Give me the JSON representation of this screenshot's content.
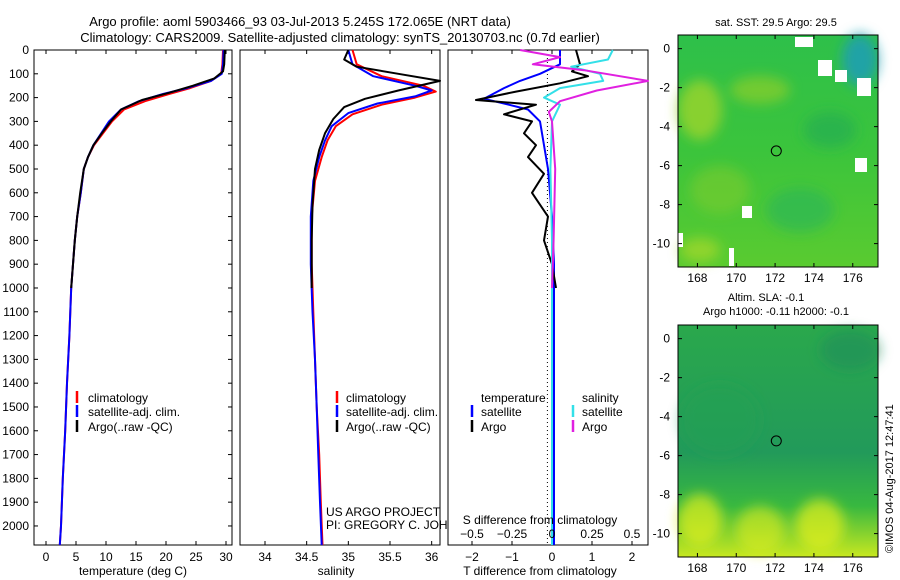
{
  "title_line1": "Argo profile: aoml 5903466_93 03-Jul-2013 5.245S 172.065E (NRT data)",
  "title_line2": "Climatology: CARS2009. Satellite-adjusted climatology: synTS_20130703.nc (0.7d earlier)",
  "colors": {
    "climatology": "#ff0000",
    "satellite": "#0000ff",
    "argo": "#000000",
    "sal_satellite": "#33e0e8",
    "sal_argo": "#e020e0"
  },
  "chart_data": [
    {
      "type": "line",
      "id": "temperature",
      "xlabel": "temperature (deg C)",
      "ylabel": "",
      "xlim": [
        -2,
        31
      ],
      "ylim": [
        2080,
        0
      ],
      "xticks": [
        0,
        5,
        10,
        15,
        20,
        25,
        30
      ],
      "yticks": [
        0,
        100,
        200,
        300,
        400,
        500,
        600,
        700,
        800,
        900,
        1000,
        1100,
        1200,
        1300,
        1400,
        1500,
        1600,
        1700,
        1800,
        1900,
        2000
      ],
      "legend": [
        "climatology",
        "satellite-adj. clim.",
        "Argo(..raw -QC)"
      ],
      "series": [
        {
          "name": "climatology",
          "points": [
            [
              29.5,
              0
            ],
            [
              29.4,
              60
            ],
            [
              29.2,
              100
            ],
            [
              27.5,
              130
            ],
            [
              24,
              160
            ],
            [
              20.5,
              185
            ],
            [
              16.5,
              215
            ],
            [
              13,
              250
            ],
            [
              11,
              300
            ],
            [
              9.5,
              350
            ],
            [
              8,
              400
            ],
            [
              7,
              450
            ],
            [
              6.3,
              500
            ],
            [
              5.8,
              600
            ],
            [
              5.2,
              700
            ],
            [
              4.8,
              800
            ],
            [
              4.5,
              900
            ],
            [
              4.2,
              1000
            ],
            [
              3.9,
              1200
            ],
            [
              3.5,
              1400
            ],
            [
              3.2,
              1600
            ],
            [
              2.8,
              1800
            ],
            [
              2.5,
              2000
            ],
            [
              2.3,
              2080
            ]
          ]
        },
        {
          "name": "satellite",
          "points": [
            [
              29.6,
              0
            ],
            [
              29.5,
              60
            ],
            [
              29.3,
              100
            ],
            [
              27.5,
              130
            ],
            [
              23.5,
              160
            ],
            [
              19.5,
              185
            ],
            [
              15.5,
              215
            ],
            [
              12.5,
              250
            ],
            [
              10.5,
              300
            ],
            [
              9.2,
              350
            ],
            [
              7.9,
              400
            ],
            [
              7,
              450
            ],
            [
              6.3,
              500
            ],
            [
              5.8,
              600
            ],
            [
              5.2,
              700
            ],
            [
              4.8,
              800
            ],
            [
              4.5,
              900
            ],
            [
              4.2,
              1000
            ],
            [
              3.9,
              1200
            ],
            [
              3.5,
              1400
            ],
            [
              3.2,
              1600
            ],
            [
              2.8,
              1800
            ],
            [
              2.5,
              2000
            ],
            [
              2.3,
              2080
            ]
          ]
        },
        {
          "name": "argo",
          "points": [
            [
              29.8,
              0
            ],
            [
              29.7,
              60
            ],
            [
              29.5,
              90
            ],
            [
              28,
              120
            ],
            [
              24.5,
              150
            ],
            [
              20.5,
              180
            ],
            [
              16,
              210
            ],
            [
              12.5,
              250
            ],
            [
              10.8,
              300
            ],
            [
              9.3,
              350
            ],
            [
              7.9,
              400
            ],
            [
              7,
              450
            ],
            [
              6.3,
              500
            ],
            [
              5.7,
              600
            ],
            [
              5.2,
              700
            ],
            [
              4.8,
              800
            ],
            [
              4.5,
              900
            ],
            [
              4.2,
              1000
            ]
          ]
        }
      ]
    },
    {
      "type": "line",
      "id": "salinity",
      "xlabel": "salinity",
      "xlim": [
        33.7,
        36.1
      ],
      "ylim": [
        2080,
        0
      ],
      "xticks": [
        34,
        34.5,
        35,
        35.5,
        36
      ],
      "xtick_labels": [
        "34",
        "34.5",
        "35",
        "35.5",
        "36"
      ],
      "legend": [
        "climatology",
        "satellite-adj. clim.",
        "Argo(..raw -QC)"
      ],
      "series": [
        {
          "name": "climatology",
          "points": [
            [
              35.05,
              0
            ],
            [
              35.1,
              60
            ],
            [
              35.4,
              110
            ],
            [
              35.9,
              150
            ],
            [
              36.05,
              175
            ],
            [
              35.8,
              200
            ],
            [
              35.4,
              230
            ],
            [
              35.05,
              270
            ],
            [
              34.85,
              320
            ],
            [
              34.75,
              380
            ],
            [
              34.68,
              450
            ],
            [
              34.6,
              550
            ],
            [
              34.56,
              700
            ],
            [
              34.56,
              900
            ],
            [
              34.58,
              1100
            ],
            [
              34.6,
              1300
            ],
            [
              34.62,
              1500
            ],
            [
              34.65,
              1700
            ],
            [
              34.67,
              1900
            ],
            [
              34.69,
              2080
            ]
          ]
        },
        {
          "name": "satellite",
          "points": [
            [
              35.0,
              0
            ],
            [
              35.05,
              60
            ],
            [
              35.3,
              110
            ],
            [
              35.8,
              150
            ],
            [
              36.0,
              170
            ],
            [
              35.8,
              195
            ],
            [
              35.35,
              225
            ],
            [
              35.0,
              265
            ],
            [
              34.8,
              320
            ],
            [
              34.72,
              380
            ],
            [
              34.65,
              450
            ],
            [
              34.58,
              550
            ],
            [
              34.55,
              700
            ],
            [
              34.55,
              900
            ],
            [
              34.57,
              1100
            ],
            [
              34.6,
              1300
            ],
            [
              34.62,
              1500
            ],
            [
              34.64,
              1700
            ],
            [
              34.66,
              1900
            ],
            [
              34.68,
              2080
            ]
          ]
        },
        {
          "name": "argo",
          "points": [
            [
              35.0,
              0
            ],
            [
              34.95,
              40
            ],
            [
              35.1,
              70
            ],
            [
              35.6,
              100
            ],
            [
              36.1,
              130
            ],
            [
              35.6,
              170
            ],
            [
              35.2,
              205
            ],
            [
              34.95,
              240
            ],
            [
              34.82,
              290
            ],
            [
              34.72,
              350
            ],
            [
              34.65,
              420
            ],
            [
              34.6,
              500
            ],
            [
              34.57,
              650
            ],
            [
              34.56,
              800
            ],
            [
              34.56,
              1000
            ]
          ]
        }
      ]
    },
    {
      "type": "line",
      "id": "difference",
      "xlabel": "T difference from climatology",
      "xlabel_top": "S difference from climatology",
      "xlim": [
        -2.6,
        2.4
      ],
      "ylim": [
        2080,
        0
      ],
      "xticks": [
        -2,
        -1,
        0,
        1,
        2
      ],
      "xtick_labels": [
        "−2",
        "−1",
        "0",
        "1",
        "2"
      ],
      "s_xticks": [
        -0.5,
        -0.25,
        0,
        0.25,
        0.5
      ],
      "s_xtick_labels": [
        "−0.5",
        "−0.25",
        "0",
        "0.25",
        "0.5"
      ],
      "legend_temperature_header": "temperature",
      "legend_salinity_header": "salinity",
      "legend": [
        "satellite",
        "Argo",
        "satellite",
        "Argo"
      ],
      "series": [
        {
          "name": "T satellite",
          "points": [
            [
              0.2,
              0
            ],
            [
              0.2,
              60
            ],
            [
              -0.3,
              100
            ],
            [
              -0.8,
              130
            ],
            [
              -1.2,
              160
            ],
            [
              -1.7,
              205
            ],
            [
              -1.2,
              225
            ],
            [
              -0.6,
              250
            ],
            [
              -0.3,
              300
            ],
            [
              -0.2,
              400
            ],
            [
              -0.1,
              500
            ],
            [
              0,
              700
            ],
            [
              0.05,
              900
            ],
            [
              0.05,
              1100
            ],
            [
              0.05,
              1300
            ],
            [
              0.05,
              1600
            ],
            [
              0.05,
              1900
            ],
            [
              0.05,
              2080
            ]
          ]
        },
        {
          "name": "T argo",
          "points": [
            [
              0.6,
              0
            ],
            [
              0.7,
              60
            ],
            [
              0.5,
              90
            ],
            [
              0.9,
              110
            ],
            [
              0.2,
              140
            ],
            [
              -0.9,
              175
            ],
            [
              -1.9,
              210
            ],
            [
              -0.4,
              230
            ],
            [
              -1.2,
              270
            ],
            [
              -0.5,
              300
            ],
            [
              -0.7,
              350
            ],
            [
              -0.4,
              400
            ],
            [
              -0.6,
              450
            ],
            [
              -0.2,
              520
            ],
            [
              -0.5,
              600
            ],
            [
              -0.1,
              700
            ],
            [
              -0.2,
              800
            ],
            [
              0,
              900
            ],
            [
              0.1,
              1000
            ]
          ]
        },
        {
          "name": "S satellite",
          "points": [
            [
              0.38,
              0
            ],
            [
              0.35,
              40
            ],
            [
              0.12,
              70
            ],
            [
              0.3,
              100
            ],
            [
              0.32,
              130
            ],
            [
              0.05,
              160
            ],
            [
              -0.05,
              200
            ],
            [
              0.05,
              230
            ],
            [
              0,
              300
            ],
            [
              -0.01,
              500
            ],
            [
              0,
              800
            ],
            [
              0,
              1200
            ],
            [
              0,
              2080
            ]
          ]
        },
        {
          "name": "S argo",
          "points": [
            [
              -0.2,
              0
            ],
            [
              0.05,
              30
            ],
            [
              -0.12,
              60
            ],
            [
              0.2,
              85
            ],
            [
              0.6,
              130
            ],
            [
              0.28,
              170
            ],
            [
              0.05,
              215
            ],
            [
              -0.02,
              260
            ],
            [
              0,
              300
            ],
            [
              0.02,
              500
            ],
            [
              0.01,
              800
            ],
            [
              0,
              1000
            ]
          ]
        }
      ]
    }
  ],
  "map_top": {
    "title": "sat. SST: 29.5  Argo: 29.5",
    "xticks": [
      "168",
      "170",
      "172",
      "174",
      "176"
    ],
    "yticks": [
      "0",
      "-2",
      "-4",
      "-6",
      "-8",
      "-10"
    ],
    "lon_range": [
      167,
      177.3
    ],
    "lat_range": [
      -11.2,
      0.7
    ],
    "float_lon": 172.065,
    "float_lat": -5.245
  },
  "map_bottom": {
    "title_line1": "Altim. SLA: -0.1",
    "title_line2": "Argo h1000: -0.11  h2000: -0.1",
    "xticks": [
      "168",
      "170",
      "172",
      "174",
      "176"
    ],
    "yticks": [
      "0",
      "-2",
      "-4",
      "-6",
      "-8",
      "-10"
    ],
    "lon_range": [
      167,
      177.3
    ],
    "lat_range": [
      -11.2,
      0.7
    ],
    "float_lon": 172.065,
    "float_lat": -5.245
  },
  "credit_project": "US ARGO PROJECT",
  "credit_pi": "PI: GREGORY C. JOHNSON",
  "side_stamp": "©IMOS 04-Aug-2017 12:47:41"
}
